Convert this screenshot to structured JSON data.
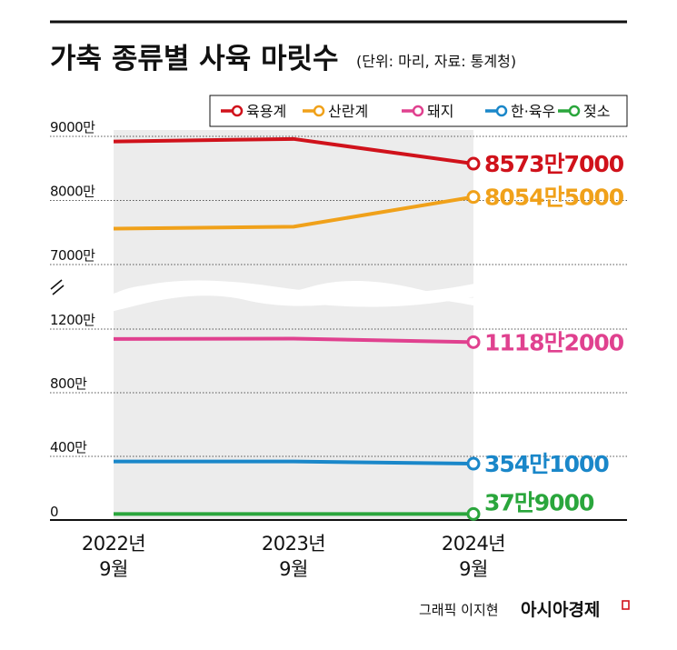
{
  "header": {
    "title": "가축 종류별 사육 마릿수",
    "subtitle": "(단위: 마리, 자료: 통계청)"
  },
  "credit": {
    "byline": "그래픽 이지현",
    "brand": "아시아경제"
  },
  "chart_data": {
    "type": "line",
    "x": [
      "2022년 9월",
      "2023년 9월",
      "2024년 9월"
    ],
    "x_tick_lines": [
      [
        "2022년",
        "9월"
      ],
      [
        "2023년",
        "9월"
      ],
      [
        "2024년",
        "9월"
      ]
    ],
    "y_axis_broken": true,
    "y_ticks_upper": [
      {
        "value": 9000,
        "label": "9000만"
      },
      {
        "value": 8000,
        "label": "8000만"
      },
      {
        "value": 7000,
        "label": "7000만"
      }
    ],
    "y_ticks_lower": [
      {
        "value": 1200,
        "label": "1200만"
      },
      {
        "value": 800,
        "label": "800만"
      },
      {
        "value": 400,
        "label": "400만"
      },
      {
        "value": 0,
        "label": "0"
      }
    ],
    "unit": "만 마리",
    "grid": "dotted horizontal",
    "shaded_period": [
      "2022년 9월",
      "2024년 9월"
    ],
    "legend_position": "top-right",
    "series": [
      {
        "name": "육용계",
        "color": "#d0121b",
        "values": [
          8920,
          8960,
          8573.7
        ],
        "end_label": "8573만7000"
      },
      {
        "name": "산란계",
        "color": "#f0a11a",
        "values": [
          7560,
          7590,
          8054.5
        ],
        "end_label": "8054만5000"
      },
      {
        "name": "돼지",
        "color": "#e0418f",
        "values": [
          1138,
          1140,
          1118.2
        ],
        "end_label": "1118만2000"
      },
      {
        "name": "한·육우",
        "color": "#1a87c9",
        "values": [
          368,
          368,
          354.1
        ],
        "end_label": "354만1000"
      },
      {
        "name": "젖소",
        "color": "#2aa63c",
        "values": [
          38,
          38,
          37.9
        ],
        "end_label": "37만9000"
      }
    ]
  }
}
